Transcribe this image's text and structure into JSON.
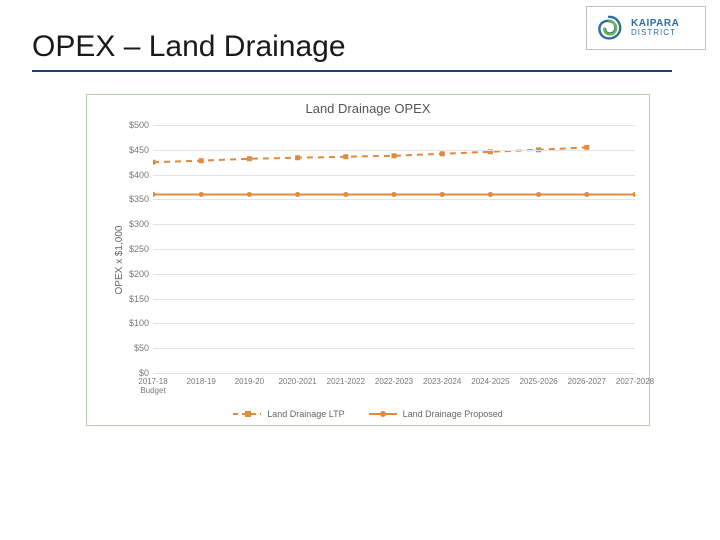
{
  "slide": {
    "title": "OPEX – Land Drainage",
    "title_fontsize": 30,
    "underline_color": "#1f3f77"
  },
  "logo": {
    "brand_line1": "KAIPARA",
    "brand_line2": "DISTRICT",
    "brand_color": "#2a6ea3",
    "spiral_outer": "#2a6ea3",
    "spiral_inner": "#6db24b"
  },
  "chart": {
    "type": "line",
    "title": "Land Drainage OPEX",
    "title_fontsize": 13,
    "yaxis_title": "OPEX x $1,000",
    "border_color": "#b7caa6",
    "background_color": "#ffffff",
    "grid_color": "#e3e3e3",
    "tick_font_color": "#777777",
    "label_fontsize": 9,
    "ylim": [
      0,
      500
    ],
    "ytick_step": 50,
    "ytick_labels": [
      "$0",
      "$50",
      "$100",
      "$150",
      "$200",
      "$250",
      "$300",
      "$350",
      "$400",
      "$450",
      "$500"
    ],
    "categories": [
      "2017-18 Budget",
      "2018-19",
      "2019-20",
      "2020-2021",
      "2021-2022",
      "2022-2023",
      "2023-2024",
      "2024-2025",
      "2025-2026",
      "2026-2027",
      "2027-2028"
    ],
    "series": [
      {
        "name": "Land Drainage  LTP",
        "style": "dashed",
        "color": "#e08a3a",
        "marker": "square",
        "marker_size": 5,
        "line_width": 2,
        "dash": "6,5",
        "values": [
          425,
          428,
          432,
          434,
          436,
          438,
          442,
          446,
          450,
          455,
          null
        ]
      },
      {
        "name": "Land Drainage Proposed",
        "style": "solid",
        "color": "#e08a3a",
        "marker": "circle",
        "marker_size": 5,
        "line_width": 2,
        "values": [
          360,
          360,
          360,
          360,
          360,
          360,
          360,
          360,
          360,
          360,
          360
        ]
      }
    ],
    "legend": {
      "items": [
        "Land Drainage  LTP",
        "Land Drainage Proposed"
      ],
      "position": "bottom"
    }
  }
}
